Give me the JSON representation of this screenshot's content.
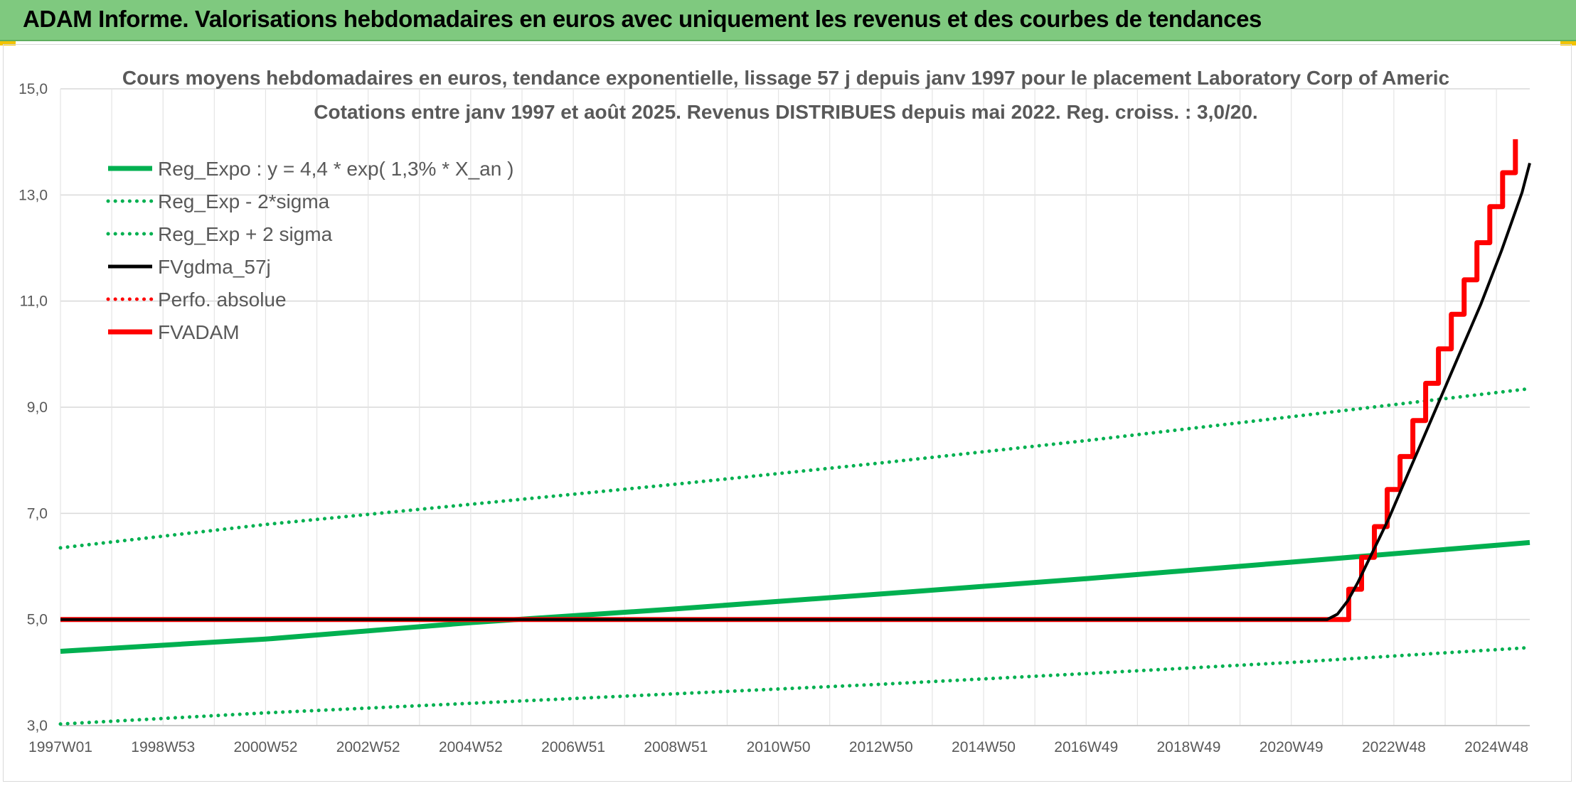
{
  "header": {
    "title": "ADAM Informe. Valorisations hebdomadaires en euros avec uniquement les revenus et des courbes de tendances"
  },
  "colors": {
    "header_bg": "#7fc97f",
    "reg_green": "#00b050",
    "fvgdma_black": "#000000",
    "adam_red": "#ff0000",
    "accent_yellow": "#f2c200"
  },
  "chart_data": {
    "type": "line",
    "title": "Cours moyens hebdomadaires en euros, tendance exponentielle, lissage 57 j depuis janv 1997 pour le placement Laboratory Corp of Americ",
    "subtitle": "Cotations entre janv 1997 et août 2025. Revenus DISTRIBUES depuis mai 2022. Reg. croiss. : 3,0/20.",
    "ylim": [
      3.0,
      15.0
    ],
    "x_range_years": [
      1997.0,
      2025.65
    ],
    "yticks": [
      "3,0",
      "5,0",
      "7,0",
      "9,0",
      "11,0",
      "13,0",
      "15,0"
    ],
    "ytick_values": [
      3,
      5,
      7,
      9,
      11,
      13,
      15
    ],
    "xticks": [
      "1997W01",
      "1998W53",
      "2000W52",
      "2002W52",
      "2004W52",
      "2006W51",
      "2008W51",
      "2010W50",
      "2012W50",
      "2014W50",
      "2016W49",
      "2018W49",
      "2020W49",
      "2022W48",
      "2024W48"
    ],
    "xtick_years": [
      1997.0,
      1999.0,
      2001.0,
      2003.0,
      2005.0,
      2007.0,
      2009.0,
      2011.0,
      2013.0,
      2015.0,
      2017.0,
      2019.0,
      2021.0,
      2023.0,
      2025.0
    ],
    "grid": true,
    "legend_position": "top-left",
    "series": [
      {
        "name": "Reg_Expo : y = 4,4 * exp( 1,3% *  X_an )",
        "style": "solid-thick",
        "color": "#00b050",
        "points": [
          [
            1997.0,
            4.4
          ],
          [
            2001.0,
            4.63
          ],
          [
            2005.0,
            4.94
          ],
          [
            2009.0,
            5.2
          ],
          [
            2013.0,
            5.48
          ],
          [
            2017.0,
            5.77
          ],
          [
            2021.0,
            6.08
          ],
          [
            2025.65,
            6.45
          ]
        ]
      },
      {
        "name": "Reg_Exp - 2*sigma",
        "style": "dotted",
        "color": "#00b050",
        "points": [
          [
            1997.0,
            3.03
          ],
          [
            2001.0,
            3.24
          ],
          [
            2005.0,
            3.42
          ],
          [
            2009.0,
            3.6
          ],
          [
            2013.0,
            3.78
          ],
          [
            2017.0,
            3.98
          ],
          [
            2021.0,
            4.19
          ],
          [
            2025.65,
            4.47
          ]
        ]
      },
      {
        "name": "Reg_Exp + 2 sigma",
        "style": "dotted",
        "color": "#00b050",
        "points": [
          [
            1997.0,
            6.35
          ],
          [
            2001.0,
            6.79
          ],
          [
            2005.0,
            7.17
          ],
          [
            2009.0,
            7.55
          ],
          [
            2013.0,
            7.95
          ],
          [
            2017.0,
            8.37
          ],
          [
            2021.0,
            8.82
          ],
          [
            2025.65,
            9.35
          ]
        ]
      },
      {
        "name": "FVgdma_57j",
        "style": "solid",
        "color": "#000000",
        "points": [
          [
            1997.0,
            5.0
          ],
          [
            2021.7,
            5.0
          ],
          [
            2021.9,
            5.1
          ],
          [
            2022.1,
            5.35
          ],
          [
            2022.3,
            5.7
          ],
          [
            2022.5,
            6.1
          ],
          [
            2022.7,
            6.5
          ],
          [
            2022.9,
            6.9
          ],
          [
            2023.1,
            7.35
          ],
          [
            2023.3,
            7.8
          ],
          [
            2023.5,
            8.25
          ],
          [
            2023.7,
            8.7
          ],
          [
            2023.9,
            9.15
          ],
          [
            2024.1,
            9.6
          ],
          [
            2024.3,
            10.05
          ],
          [
            2024.5,
            10.5
          ],
          [
            2024.7,
            10.95
          ],
          [
            2024.9,
            11.45
          ],
          [
            2025.1,
            11.95
          ],
          [
            2025.3,
            12.5
          ],
          [
            2025.5,
            13.05
          ],
          [
            2025.65,
            13.6
          ]
        ]
      },
      {
        "name": "Perfo. absolue",
        "style": "dotted",
        "color": "#ff0000",
        "points": []
      },
      {
        "name": "FVADAM",
        "style": "solid-thick-step",
        "color": "#ff0000",
        "points": [
          [
            1997.0,
            5.0
          ],
          [
            2022.12,
            5.0
          ],
          [
            2022.12,
            5.57
          ],
          [
            2022.37,
            5.57
          ],
          [
            2022.37,
            6.17
          ],
          [
            2022.62,
            6.17
          ],
          [
            2022.62,
            6.75
          ],
          [
            2022.87,
            6.75
          ],
          [
            2022.87,
            7.45
          ],
          [
            2023.12,
            7.45
          ],
          [
            2023.12,
            8.07
          ],
          [
            2023.37,
            8.07
          ],
          [
            2023.37,
            8.75
          ],
          [
            2023.62,
            8.75
          ],
          [
            2023.62,
            9.45
          ],
          [
            2023.87,
            9.45
          ],
          [
            2023.87,
            10.1
          ],
          [
            2024.12,
            10.1
          ],
          [
            2024.12,
            10.75
          ],
          [
            2024.37,
            10.75
          ],
          [
            2024.37,
            11.4
          ],
          [
            2024.62,
            11.4
          ],
          [
            2024.62,
            12.1
          ],
          [
            2024.87,
            12.1
          ],
          [
            2024.87,
            12.78
          ],
          [
            2025.12,
            12.78
          ],
          [
            2025.12,
            13.42
          ],
          [
            2025.37,
            13.42
          ],
          [
            2025.37,
            14.05
          ]
        ]
      }
    ]
  }
}
